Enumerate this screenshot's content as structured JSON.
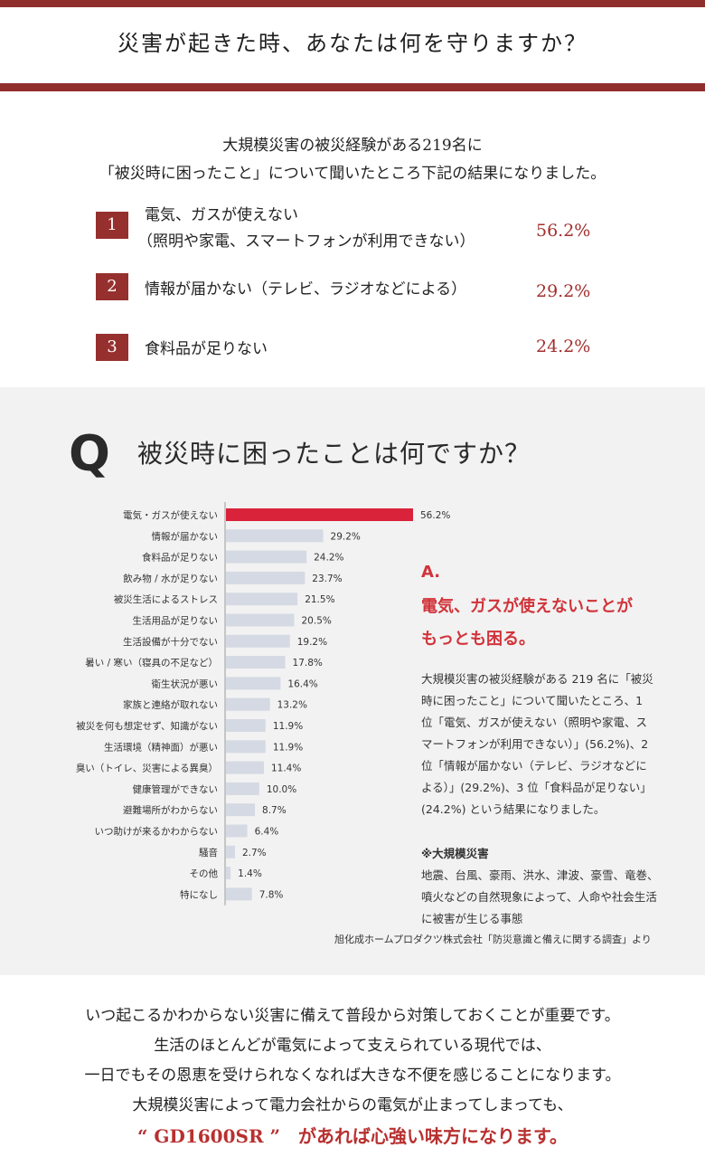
{
  "header": {
    "title": "災害が起きた時、あなたは何を守りますか？"
  },
  "intro": {
    "line1": "大規模災害の被災経験がある219名に",
    "line2": "「被災時に困ったこと」について聞いたところ下記の結果になりました。"
  },
  "ranking": [
    {
      "rank": "1",
      "line1": "電気、ガスが使えない",
      "line2": "（照明や家電、スマートフォンが利用できない）",
      "pct": "56.2%"
    },
    {
      "rank": "2",
      "line1": "情報が届かない（テレビ、ラジオなどによる）",
      "line2": "",
      "pct": "29.2%"
    },
    {
      "rank": "3",
      "line1": "食料品が足りない",
      "line2": "",
      "pct": "24.2%"
    }
  ],
  "question": {
    "letter": "Q",
    "title": "被災時に困ったことは何ですか？"
  },
  "chart_data": {
    "type": "bar",
    "orientation": "horizontal",
    "categories": [
      "電気・ガスが使えない",
      "情報が届かない",
      "食料品が足りない",
      "飲み物 / 水が足りない",
      "被災生活によるストレス",
      "生活用品が足りない",
      "生活設備が十分でない",
      "暑い / 寒い（寝具の不足など）",
      "衛生状況が悪い",
      "家族と連絡が取れない",
      "被災を何も想定せず、知識がない",
      "生活環境（精神面）が悪い",
      "臭い（トイレ、災害による異臭）",
      "健康管理ができない",
      "避難場所がわからない",
      "いつ助けが来るかわからない",
      "騒音",
      "その他",
      "特になし"
    ],
    "values": [
      56.2,
      29.2,
      24.2,
      23.7,
      21.5,
      20.5,
      19.2,
      17.8,
      16.4,
      13.2,
      11.9,
      11.9,
      11.4,
      10.0,
      8.7,
      6.4,
      2.7,
      1.4,
      7.8
    ],
    "value_labels": [
      "56.2%",
      "29.2%",
      "24.2%",
      "23.7%",
      "21.5%",
      "20.5%",
      "19.2%",
      "17.8%",
      "16.4%",
      "13.2%",
      "11.9%",
      "11.9%",
      "11.4%",
      "10.0%",
      "8.7%",
      "6.4%",
      "2.7%",
      "1.4%",
      "7.8%"
    ],
    "highlight_color": "#d8233a",
    "bar_color": "#d5d9e3",
    "grid": false,
    "xlim": [
      0,
      60
    ]
  },
  "answer": {
    "label": "A.",
    "headline1": "電気、ガスが使えないことが",
    "headline2": "もっとも困る。",
    "body": [
      "大規模災害の被災経験がある 219 名に「被災",
      "時に困ったこと」について聞いたところ、1",
      "位「電気、ガスが使えない（照明や家電、ス",
      "マートフォンが利用できない）」(56.2%)、2",
      "位「情報が届かない（テレビ、ラジオなどに",
      "よる）」(29.2%)、3 位「食料品が足りない」",
      "(24.2%) という結果になりました。"
    ],
    "note_head": "※大規模災害",
    "note_body": [
      "地震、台風、豪雨、洪水、津波、豪雪、竜巻、",
      "噴火などの自然現象によって、人命や社会生活",
      "に被害が生じる事態"
    ],
    "source": "旭化成ホームプロダクツ株式会社「防災意識と備えに関する調査」より"
  },
  "closing": {
    "lines": [
      "いつ起こるかわからない災害に備えて普段から対策しておくことが重要です。",
      "生活のほとんどが電気によって支えられている現代では、",
      "一日でもその恩恵を受けられなくなれば大きな不便を感じることになります。",
      "大規模災害によって電力会社からの電気が止まってしまっても、"
    ],
    "final": "“ GD1600SR ”　があれば心強い味方になります。"
  },
  "colors": {
    "accent": "#8f2e2c",
    "highlight": "#d1333a"
  }
}
